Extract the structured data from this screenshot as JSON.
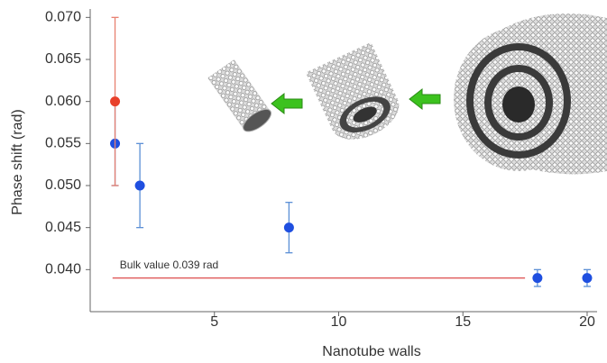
{
  "chart_data": {
    "type": "scatter",
    "xlabel": "Nanotube walls",
    "ylabel": "Phase shift (rad)",
    "xlim": [
      0,
      20.4
    ],
    "ylim": [
      0.035,
      0.071
    ],
    "xticks": [
      5,
      10,
      15,
      20
    ],
    "yticks": [
      {
        "value": 0.04,
        "label": "0.040"
      },
      {
        "value": 0.045,
        "label": "0.045"
      },
      {
        "value": 0.05,
        "label": "0.050"
      },
      {
        "value": 0.055,
        "label": "0.055"
      },
      {
        "value": 0.06,
        "label": "0.060"
      },
      {
        "value": 0.065,
        "label": "0.065"
      },
      {
        "value": 0.07,
        "label": "0.070"
      }
    ],
    "series": [
      {
        "color": "#1f4fe0",
        "bar_color": "#5b8fd6",
        "x": [
          1,
          2,
          8,
          18,
          20
        ],
        "values": [
          0.055,
          0.05,
          0.045,
          0.039,
          0.039
        ],
        "errors": [
          0.005,
          0.005,
          0.003,
          0.001,
          0.001
        ]
      },
      {
        "color": "#e8402a",
        "bar_color": "#e88070",
        "x": [
          1
        ],
        "values": [
          0.06
        ],
        "errors": [
          0.01
        ]
      }
    ],
    "hline": {
      "value": 0.039,
      "x": [
        0.9,
        17.5
      ],
      "color": "#e06060",
      "label": "Bulk value 0.039 rad"
    }
  }
}
